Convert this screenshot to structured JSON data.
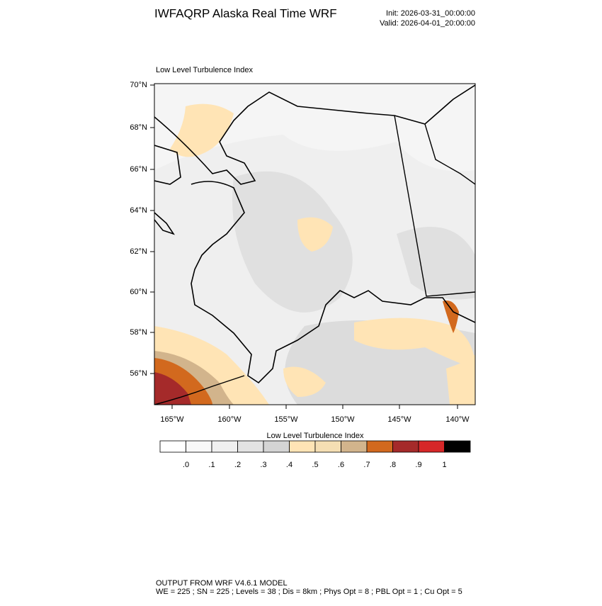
{
  "header": {
    "title": "IWFAQRP Alaska Real Time WRF",
    "init": "Init: 2026-03-31_00:00:00",
    "valid": "Valid: 2026-04-01_20:00:00"
  },
  "map": {
    "title": "Low Level Turbulence Index",
    "lat_labels": [
      "70°N",
      "68°N",
      "66°N",
      "64°N",
      "62°N",
      "60°N",
      "58°N",
      "56°N"
    ],
    "lon_labels": [
      "165°W",
      "160°W",
      "155°W",
      "150°W",
      "145°W",
      "140°W"
    ]
  },
  "colorbar": {
    "title": "Low Level Turbulence Index",
    "colors": [
      "#ffffff",
      "#f8f8f8",
      "#f0f0f0",
      "#e2e2e2",
      "#d4d4d4",
      "#ffe4b5",
      "#f5deb3",
      "#d2b48c",
      "#d2691e",
      "#a52a2a",
      "#d62728",
      "#000000"
    ],
    "labels": [
      ".0",
      ".1",
      ".2",
      ".3",
      ".4",
      ".5",
      ".6",
      ".7",
      ".8",
      ".9",
      "1"
    ]
  },
  "footer": {
    "line1": "OUTPUT FROM WRF V4.6.1 MODEL",
    "line2": "WE = 225 ; SN = 225 ; Levels = 38 ; Dis = 8km ; Phys Opt = 8 ; PBL Opt = 1 ; Cu Opt = 5"
  }
}
